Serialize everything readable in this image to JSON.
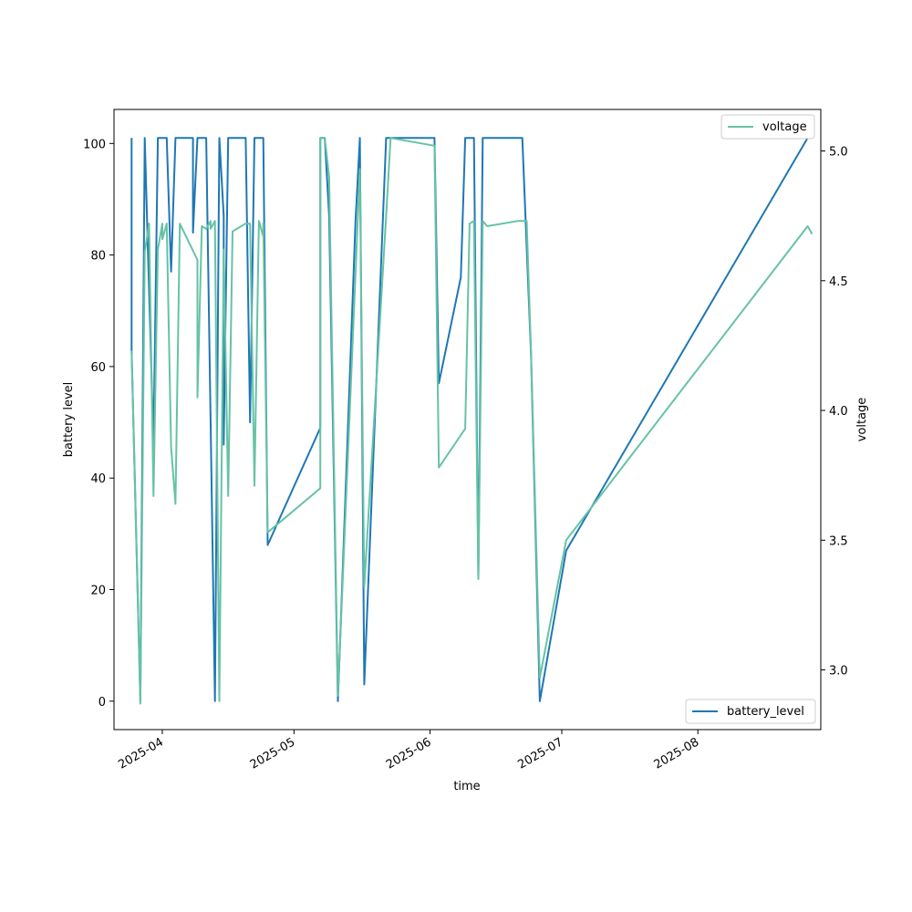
{
  "chart_data": {
    "type": "line",
    "xlabel": "time",
    "ylabel": "battery level",
    "y2label": "voltage",
    "xlim": [
      "2025-03-21",
      "2025-08-29"
    ],
    "ylim": [
      -5.1,
      106.1
    ],
    "y2lim": [
      2.77,
      5.16
    ],
    "x_ticks": [
      "2025-04-01",
      "2025-05-01",
      "2025-06-01",
      "2025-07-01",
      "2025-08-01"
    ],
    "x_tick_labels": [
      "2025-04",
      "2025-05",
      "2025-06",
      "2025-07",
      "2025-08"
    ],
    "y_ticks": [
      0,
      20,
      40,
      60,
      80,
      100
    ],
    "y_tick_labels": [
      "0",
      "20",
      "40",
      "60",
      "80",
      "100"
    ],
    "y2_ticks": [
      3.0,
      3.5,
      4.0,
      4.5,
      5.0
    ],
    "y2_tick_labels": [
      "3.0",
      "3.5",
      "4.0",
      "4.5",
      "5.0"
    ],
    "grid": false,
    "series": [
      {
        "name": "battery_level",
        "axis": "left",
        "color": "#1f77b4",
        "legend_position": "lower-right",
        "points": [
          [
            "2025-03-25",
            101
          ],
          [
            "2025-03-25",
            63
          ],
          [
            "2025-03-27",
            0
          ],
          [
            "2025-03-28",
            101
          ],
          [
            "2025-03-28",
            101
          ],
          [
            "2025-03-30",
            46
          ],
          [
            "2025-03-31",
            101
          ],
          [
            "2025-04-02",
            101
          ],
          [
            "2025-04-03",
            77
          ],
          [
            "2025-04-04",
            101
          ],
          [
            "2025-04-06",
            101
          ],
          [
            "2025-04-07",
            101
          ],
          [
            "2025-04-08",
            101
          ],
          [
            "2025-04-08",
            84
          ],
          [
            "2025-04-09",
            101
          ],
          [
            "2025-04-10",
            101
          ],
          [
            "2025-04-11",
            101
          ],
          [
            "2025-04-13",
            0
          ],
          [
            "2025-04-14",
            101
          ],
          [
            "2025-04-15",
            87
          ],
          [
            "2025-04-15",
            46
          ],
          [
            "2025-04-16",
            101
          ],
          [
            "2025-04-17",
            101
          ],
          [
            "2025-04-19",
            101
          ],
          [
            "2025-04-20",
            101
          ],
          [
            "2025-04-21",
            50
          ],
          [
            "2025-04-22",
            101
          ],
          [
            "2025-04-23",
            101
          ],
          [
            "2025-04-24",
            101
          ],
          [
            "2025-04-25",
            28
          ],
          [
            "2025-05-07",
            49
          ],
          [
            "2025-05-07",
            101
          ],
          [
            "2025-05-08",
            101
          ],
          [
            "2025-05-09",
            87
          ],
          [
            "2025-05-11",
            0
          ],
          [
            "2025-05-15",
            86
          ],
          [
            "2025-05-16",
            101
          ],
          [
            "2025-05-17",
            3
          ],
          [
            "2025-05-22",
            101
          ],
          [
            "2025-05-23",
            101
          ],
          [
            "2025-05-31",
            101
          ],
          [
            "2025-06-02",
            101
          ],
          [
            "2025-06-03",
            57
          ],
          [
            "2025-06-08",
            76
          ],
          [
            "2025-06-09",
            101
          ],
          [
            "2025-06-11",
            101
          ],
          [
            "2025-06-12",
            22
          ],
          [
            "2025-06-13",
            101
          ],
          [
            "2025-06-15",
            101
          ],
          [
            "2025-06-22",
            101
          ],
          [
            "2025-06-24",
            62
          ],
          [
            "2025-06-26",
            0
          ],
          [
            "2025-07-02",
            27
          ],
          [
            "2025-08-26",
            101
          ]
        ]
      },
      {
        "name": "voltage",
        "axis": "right",
        "color": "#66c2a5",
        "legend_position": "upper-right",
        "points": [
          [
            "2025-03-25",
            4.23
          ],
          [
            "2025-03-27",
            2.87
          ],
          [
            "2025-03-28",
            4.61
          ],
          [
            "2025-03-29",
            4.72
          ],
          [
            "2025-03-30",
            3.67
          ],
          [
            "2025-03-31",
            4.62
          ],
          [
            "2025-04-01",
            4.72
          ],
          [
            "2025-04-01",
            4.66
          ],
          [
            "2025-04-02",
            4.72
          ],
          [
            "2025-04-03",
            3.86
          ],
          [
            "2025-04-04",
            3.64
          ],
          [
            "2025-04-05",
            4.72
          ],
          [
            "2025-04-09",
            4.58
          ],
          [
            "2025-04-09",
            4.05
          ],
          [
            "2025-04-10",
            4.71
          ],
          [
            "2025-04-11",
            4.7
          ],
          [
            "2025-04-12",
            4.73
          ],
          [
            "2025-04-12",
            4.7
          ],
          [
            "2025-04-13",
            4.73
          ],
          [
            "2025-04-14",
            2.88
          ],
          [
            "2025-04-15",
            4.62
          ],
          [
            "2025-04-16",
            3.67
          ],
          [
            "2025-04-17",
            4.69
          ],
          [
            "2025-04-20",
            4.72
          ],
          [
            "2025-04-21",
            4.72
          ],
          [
            "2025-04-22",
            3.71
          ],
          [
            "2025-04-23",
            4.73
          ],
          [
            "2025-04-24",
            4.67
          ],
          [
            "2025-04-24",
            4.72
          ],
          [
            "2025-04-25",
            3.53
          ],
          [
            "2025-05-07",
            3.7
          ],
          [
            "2025-05-07",
            5.05
          ],
          [
            "2025-05-08",
            5.05
          ],
          [
            "2025-05-09",
            4.9
          ],
          [
            "2025-05-11",
            2.9
          ],
          [
            "2025-05-16",
            4.93
          ],
          [
            "2025-05-17",
            3.32
          ],
          [
            "2025-05-22",
            4.75
          ],
          [
            "2025-05-23",
            5.05
          ],
          [
            "2025-06-02",
            5.02
          ],
          [
            "2025-06-03",
            3.78
          ],
          [
            "2025-06-09",
            3.93
          ],
          [
            "2025-06-10",
            4.72
          ],
          [
            "2025-06-11",
            4.73
          ],
          [
            "2025-06-11",
            4.72
          ],
          [
            "2025-06-12",
            3.35
          ],
          [
            "2025-06-13",
            4.73
          ],
          [
            "2025-06-14",
            4.71
          ],
          [
            "2025-06-21",
            4.73
          ],
          [
            "2025-06-23",
            4.73
          ],
          [
            "2025-06-24",
            4.22
          ],
          [
            "2025-06-26",
            2.97
          ],
          [
            "2025-07-02",
            3.5
          ],
          [
            "2025-08-26",
            4.71
          ],
          [
            "2025-08-27",
            4.68
          ]
        ]
      }
    ]
  }
}
